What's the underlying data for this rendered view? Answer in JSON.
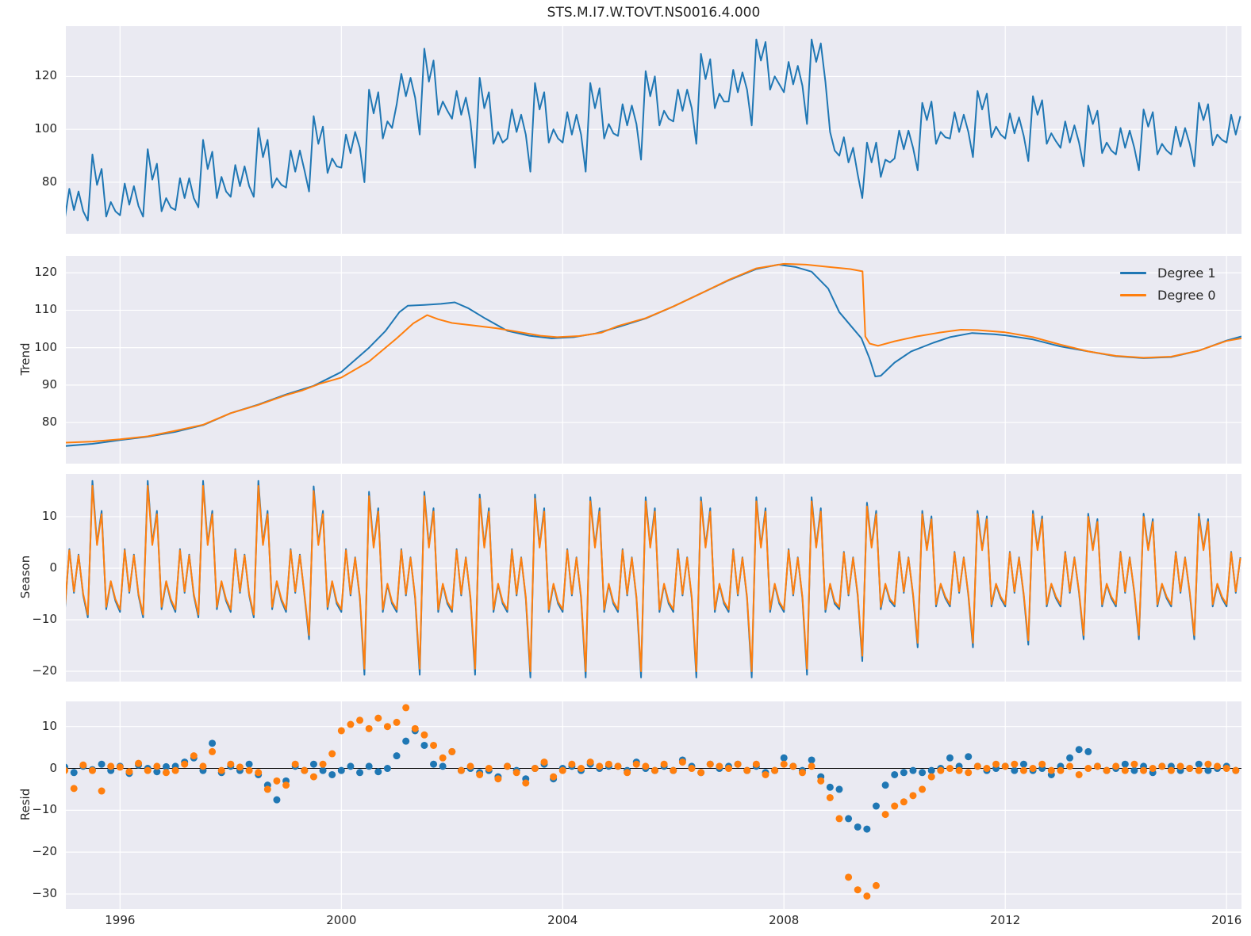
{
  "figure": {
    "title": "STS.M.I7.W.TOVT.NS0016.4.000",
    "panel_bg": "#eaeaf2",
    "grid_color": "#ffffff",
    "text_color": "#262626",
    "zero_line_color": "#000000",
    "colors": {
      "blue": "#1f77b4",
      "orange": "#ff7f0e"
    }
  },
  "xlim": [
    1995.02,
    2016.27
  ],
  "xticks": {
    "values": [
      1996,
      2000,
      2004,
      2008,
      2012,
      2016
    ],
    "labels": [
      "1996",
      "2000",
      "2004",
      "2008",
      "2012",
      "2016"
    ]
  },
  "chart_data": [
    {
      "name": "observed",
      "type": "line",
      "ylabel": "",
      "ylim": [
        60.5,
        139
      ],
      "yticks": {
        "values": [
          80,
          100,
          120
        ],
        "labels": [
          "80",
          "100",
          "120"
        ]
      },
      "x_start": 1995.0,
      "x_step_months": 1,
      "series": [
        {
          "name": "observed",
          "color_key": "blue",
          "values": [
            66,
            77.5,
            69.5,
            76.5,
            69,
            65.5,
            90.5,
            79,
            85,
            67,
            72.5,
            69,
            67.5,
            79.5,
            71.5,
            78.5,
            71,
            67,
            92.5,
            81,
            87,
            69,
            74,
            70.5,
            69.5,
            81.5,
            74,
            81.5,
            74,
            70.5,
            96,
            85,
            91.5,
            74,
            82,
            76.5,
            74.5,
            86.5,
            78.5,
            86,
            78.5,
            74.5,
            100.5,
            89.5,
            96,
            78,
            81.5,
            79,
            78,
            92,
            84,
            92,
            84.5,
            76.5,
            105,
            94.5,
            101,
            83.5,
            89,
            86,
            85.5,
            98,
            91,
            99,
            93,
            80,
            115,
            106,
            114,
            96.5,
            103,
            100.5,
            109.5,
            121,
            112.5,
            119.5,
            112,
            98,
            130.5,
            118,
            126,
            105.5,
            110.5,
            107,
            104,
            114.5,
            105.5,
            112,
            103,
            85.5,
            119.5,
            108,
            114,
            94.5,
            99,
            95,
            96.5,
            107.5,
            99,
            105.5,
            98,
            84,
            117.5,
            107.5,
            114,
            95,
            100,
            96.5,
            95,
            106.5,
            98,
            105.5,
            98,
            84,
            117.5,
            108,
            115.5,
            96.5,
            102,
            98.5,
            97.5,
            109.5,
            101.5,
            109,
            102,
            88.5,
            122,
            112.5,
            120,
            101.5,
            107,
            104,
            103,
            115,
            107,
            115,
            108,
            94.5,
            128.5,
            119,
            126.5,
            108,
            113.5,
            110.5,
            110.5,
            122.5,
            114,
            121.5,
            115,
            101.5,
            134,
            126,
            133,
            115,
            120,
            117,
            114,
            125.5,
            117,
            124,
            116.5,
            102,
            134,
            125.5,
            132.5,
            118,
            99,
            92,
            90,
            97,
            87.5,
            93,
            83,
            74,
            95,
            87.5,
            95,
            82,
            88.5,
            87.5,
            89,
            99.5,
            92.5,
            99.5,
            93,
            84.5,
            110,
            103.5,
            110.5,
            94.5,
            99,
            97,
            96.5,
            106.5,
            99,
            105.5,
            99,
            89.5,
            114.5,
            107.5,
            113.5,
            97,
            101,
            98,
            96.5,
            106,
            98.5,
            104.5,
            97.5,
            88,
            112.5,
            105.5,
            111,
            94.5,
            98.5,
            95.5,
            93,
            103,
            95,
            101.5,
            95,
            86,
            109,
            102,
            107,
            91,
            95,
            92,
            90.5,
            100.5,
            93,
            99.5,
            93,
            84.5,
            107.5,
            101,
            106.5,
            90.5,
            94.5,
            92,
            90.5,
            101,
            93.5,
            100.5,
            94.5,
            86,
            110,
            103.5,
            109.5,
            94,
            98,
            96,
            95,
            105.5,
            98,
            105
          ]
        }
      ]
    },
    {
      "name": "trend",
      "type": "line",
      "ylabel": "Trend",
      "ylim": [
        69,
        124.5
      ],
      "yticks": {
        "values": [
          80,
          90,
          100,
          110,
          120
        ],
        "labels": [
          "80",
          "90",
          "100",
          "110",
          "120"
        ]
      },
      "legend": {
        "entries": [
          "Degree 1",
          "Degree 0"
        ],
        "position": "upper right"
      },
      "series": [
        {
          "name": "Degree 1",
          "color_key": "blue",
          "x": [
            1995.0,
            1995.5,
            1996.0,
            1996.5,
            1997.0,
            1997.5,
            1998.0,
            1998.5,
            1999.0,
            1999.5,
            2000.0,
            2000.5,
            2000.8,
            2001.05,
            2001.2,
            2001.5,
            2001.8,
            2002.05,
            2002.3,
            2002.6,
            2003.0,
            2003.4,
            2003.8,
            2004.2,
            2004.6,
            2005.0,
            2005.5,
            2006.0,
            2006.5,
            2007.0,
            2007.5,
            2007.9,
            2008.2,
            2008.5,
            2008.8,
            2009.0,
            2009.2,
            2009.4,
            2009.55,
            2009.65,
            2009.75,
            2010.0,
            2010.3,
            2010.7,
            2011.0,
            2011.4,
            2011.8,
            2012.0,
            2012.5,
            2013.0,
            2013.5,
            2014.0,
            2014.5,
            2015.0,
            2015.5,
            2016.0,
            2016.27
          ],
          "y": [
            73.7,
            74.3,
            75.3,
            76.2,
            77.5,
            79.3,
            82.5,
            84.8,
            87.5,
            89.8,
            93.5,
            100.0,
            104.5,
            109.5,
            111.2,
            111.4,
            111.7,
            112.1,
            110.5,
            107.8,
            104.5,
            103.2,
            102.5,
            102.8,
            103.8,
            105.5,
            107.8,
            111.0,
            114.5,
            118.0,
            121.0,
            122.2,
            121.6,
            120.3,
            115.8,
            109.5,
            106.0,
            102.5,
            97.0,
            92.3,
            92.5,
            96.0,
            99.0,
            101.3,
            102.8,
            103.9,
            103.6,
            103.3,
            102.2,
            100.3,
            99.0,
            97.7,
            97.2,
            97.5,
            99.2,
            101.9,
            103.0
          ]
        },
        {
          "name": "Degree 0",
          "color_key": "orange",
          "x": [
            1995.0,
            1995.5,
            1996.0,
            1996.5,
            1997.0,
            1997.5,
            1998.0,
            1998.5,
            1999.0,
            1999.3,
            1999.6,
            2000.0,
            2000.5,
            2001.0,
            2001.3,
            2001.55,
            2001.75,
            2002.0,
            2002.4,
            2002.8,
            2003.2,
            2003.6,
            2003.9,
            2004.3,
            2004.7,
            2005.0,
            2005.5,
            2006.0,
            2006.5,
            2007.0,
            2007.5,
            2008.0,
            2008.4,
            2008.8,
            2009.2,
            2009.42,
            2009.47,
            2009.55,
            2009.7,
            2010.0,
            2010.4,
            2010.8,
            2011.2,
            2011.5,
            2012.0,
            2012.5,
            2013.0,
            2013.5,
            2014.0,
            2014.5,
            2015.0,
            2015.5,
            2016.0,
            2016.27
          ],
          "y": [
            74.6,
            74.9,
            75.5,
            76.3,
            77.8,
            79.4,
            82.5,
            84.7,
            87.3,
            88.6,
            90.3,
            92.0,
            96.3,
            102.5,
            106.5,
            108.7,
            107.6,
            106.6,
            105.9,
            105.2,
            104.2,
            103.2,
            102.8,
            103.1,
            104.0,
            105.8,
            107.9,
            111.0,
            114.5,
            118.1,
            121.2,
            122.4,
            122.2,
            121.6,
            121.0,
            120.4,
            103.0,
            101.1,
            100.5,
            101.7,
            103.0,
            104.0,
            104.8,
            104.7,
            104.1,
            102.8,
            100.8,
            99.0,
            97.8,
            97.3,
            97.6,
            99.2,
            101.8,
            102.5
          ]
        }
      ]
    },
    {
      "name": "season",
      "type": "line",
      "ylabel": "Season",
      "ylim": [
        -22,
        18.3
      ],
      "yticks": {
        "values": [
          -20,
          -10,
          0,
          10
        ],
        "labels": [
          "−20",
          "−10",
          "0",
          "10"
        ]
      },
      "x_start": 1995.0,
      "x_step_months": 1,
      "values_monthly": [
        -8,
        3.5,
        -4.5,
        2.5,
        -5,
        -9,
        16,
        4.5,
        10.5,
        -7.5,
        -2.5,
        -6,
        -8,
        3.5,
        -4.5,
        2.5,
        -5,
        -9,
        16,
        4.5,
        10.5,
        -7.5,
        -2.5,
        -6,
        -8,
        3.5,
        -4.5,
        2.5,
        -5,
        -9,
        16,
        4.5,
        10.5,
        -7.5,
        -2.5,
        -6,
        -8,
        3.5,
        -4.5,
        2.5,
        -5,
        -9,
        16,
        4.5,
        10.5,
        -7.5,
        -2.5,
        -6,
        -8,
        3.5,
        -4.5,
        2.5,
        -5,
        -13,
        15,
        4.5,
        10.5,
        -7.5,
        -2.5,
        -6.5,
        -8,
        3.5,
        -5,
        2,
        -5.5,
        -19.5,
        14,
        4,
        11,
        -8,
        -3,
        -6.5,
        -8,
        3.5,
        -5,
        2,
        -5.5,
        -19.5,
        14,
        4,
        11,
        -8,
        -3,
        -6.5,
        -8,
        3.5,
        -5,
        2,
        -5.5,
        -19.5,
        13.5,
        4,
        11,
        -8,
        -3,
        -6.5,
        -8,
        3.5,
        -5,
        2,
        -5.5,
        -20,
        13.5,
        4,
        11,
        -8,
        -3,
        -6.5,
        -8,
        3.5,
        -5,
        2,
        -5.5,
        -20,
        13,
        4,
        11,
        -8,
        -3,
        -6.5,
        -8,
        3.5,
        -5,
        2,
        -5.5,
        -20,
        13,
        4,
        11,
        -8,
        -3,
        -6.5,
        -8,
        3.5,
        -5,
        2,
        -5.5,
        -20,
        13,
        4,
        11,
        -8,
        -3,
        -6.5,
        -8,
        3.5,
        -5,
        2,
        -5.5,
        -20,
        13,
        4,
        11,
        -8,
        -3,
        -6.5,
        -8,
        3.5,
        -5,
        2,
        -5.5,
        -19.5,
        13,
        4,
        11,
        -8,
        -3,
        -6.5,
        -7.5,
        3,
        -5,
        2,
        -5,
        -17,
        12,
        4,
        10.5,
        -7.5,
        -3,
        -6,
        -7,
        3,
        -4.5,
        2,
        -5,
        -14.5,
        10.5,
        3.5,
        9.5,
        -7,
        -3,
        -5.5,
        -7,
        3,
        -4.5,
        2,
        -5,
        -14.5,
        10.5,
        3.5,
        9.5,
        -7,
        -3,
        -5.5,
        -7,
        3,
        -4.5,
        2,
        -5,
        -14,
        10.5,
        3.5,
        9.5,
        -7,
        -3,
        -5.5,
        -7,
        3,
        -4.5,
        2,
        -4.5,
        -13,
        10,
        3.5,
        9,
        -7,
        -3,
        -5.5,
        -7,
        3,
        -4.5,
        2,
        -4.5,
        -13,
        10,
        3.5,
        9,
        -7,
        -3,
        -5.5,
        -7,
        3,
        -4.5,
        2,
        -4.5,
        -13,
        10,
        3.5,
        9,
        -7,
        -3,
        -5.5,
        -7,
        3,
        -4.5,
        2
      ],
      "series": [
        {
          "name": "Degree 1",
          "color_key": "blue",
          "scale": 1.06
        },
        {
          "name": "Degree 0",
          "color_key": "orange",
          "scale": 1.0
        }
      ]
    },
    {
      "name": "resid",
      "type": "scatter",
      "ylabel": "Resid",
      "ylim": [
        -33.6,
        16
      ],
      "yticks": {
        "values": [
          -30,
          -20,
          -10,
          0,
          10
        ],
        "labels": [
          "−30",
          "−20",
          "−10",
          "0",
          "10"
        ]
      },
      "zero_line": true,
      "x_start": 1995.0,
      "x_step_months": 2,
      "series": [
        {
          "name": "Degree 1",
          "color_key": "blue",
          "values": [
            0.3,
            -1,
            0.5,
            -0.3,
            1,
            -0.5,
            0.5,
            -1.2,
            0.8,
            0,
            -0.8,
            0.4,
            0.5,
            1.5,
            2.5,
            -0.5,
            6,
            -1,
            0.5,
            -0.5,
            1,
            -1.5,
            -4,
            -7.5,
            -3,
            0.5,
            -0.5,
            1,
            -0.5,
            -1.5,
            -0.5,
            0.5,
            -1,
            0.5,
            -0.8,
            0,
            3,
            6.5,
            9,
            5.5,
            1,
            0.5,
            4,
            -0.5,
            0,
            -1,
            -0.5,
            -2,
            0.5,
            -0.5,
            -2.5,
            0,
            1,
            -2.5,
            0,
            0.5,
            -0.5,
            1,
            0,
            0.5,
            0.5,
            -0.5,
            1.5,
            0,
            -0.5,
            0.5,
            -0.5,
            2,
            0.5,
            -1,
            1,
            0,
            0.5,
            1,
            -0.5,
            0.5,
            -1,
            -0.5,
            2.5,
            0.5,
            -0.5,
            2,
            -2,
            -4.5,
            -5,
            -12,
            -14,
            -14.5,
            -9,
            -4,
            -1.5,
            -1,
            -0.5,
            -1,
            -0.5,
            0,
            2.5,
            0.5,
            2.8,
            0.5,
            -0.5,
            0,
            0.5,
            -0.5,
            1,
            -0.5,
            0,
            -1.5,
            0.5,
            2.5,
            4.5,
            4,
            0.5,
            -0.5,
            0,
            1,
            -0.5,
            0.5,
            -1,
            0.5,
            0.5,
            -0.5,
            0,
            1,
            -0.5,
            0,
            0.5,
            -0.5
          ]
        },
        {
          "name": "Degree 0",
          "color_key": "orange",
          "values": [
            -0.5,
            -4.8,
            0.8,
            -0.5,
            -5.4,
            0.5,
            0.3,
            -0.8,
            1.2,
            -0.5,
            0.5,
            -1,
            -0.5,
            1,
            3,
            0.5,
            4,
            -0.5,
            1,
            0.3,
            -0.5,
            -1,
            -5,
            -3,
            -4,
            1,
            -0.5,
            -2,
            1,
            3.5,
            9,
            10.5,
            11.5,
            9.5,
            12,
            10,
            11,
            14.5,
            9.5,
            8,
            5.5,
            2.5,
            4,
            -0.5,
            0.5,
            -1.5,
            0,
            -2.5,
            0.5,
            -1,
            -3.5,
            0,
            1.5,
            -2,
            -0.5,
            1,
            0,
            1.5,
            0.5,
            1,
            0.5,
            -1,
            1,
            0.5,
            -0.5,
            1,
            -0.5,
            1.5,
            0,
            -1,
            1,
            0.5,
            0,
            1,
            -0.5,
            1,
            -1.5,
            -0.5,
            1,
            0.5,
            -1,
            0.5,
            -3,
            -7,
            -12,
            -26,
            -29,
            -30.5,
            -28,
            -11,
            -9,
            -8,
            -6.5,
            -5,
            -2,
            -0.5,
            0,
            -0.5,
            -1,
            0.5,
            0,
            1,
            0.5,
            1,
            -0.5,
            0,
            1,
            -0.5,
            -0.5,
            0.5,
            -1.5,
            0,
            0.5,
            -0.5,
            0.5,
            -0.5,
            1,
            -0.5,
            0,
            0.5,
            -0.5,
            0.5,
            0,
            -0.5,
            1,
            0.5,
            0,
            -0.5
          ]
        }
      ]
    }
  ]
}
